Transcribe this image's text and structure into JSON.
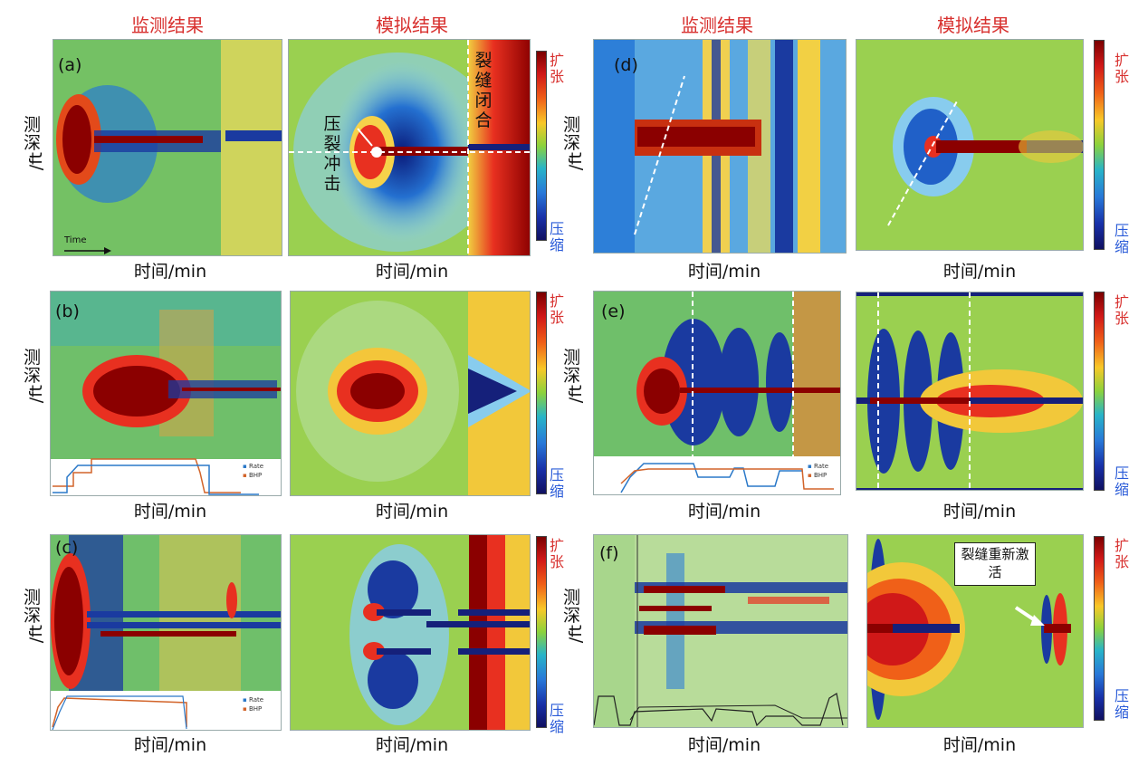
{
  "column_titles": {
    "left_monitor": "监测结果",
    "left_sim": "模拟结果",
    "right_monitor": "监测结果",
    "right_sim": "模拟结果"
  },
  "axis": {
    "x_label": "时间/min",
    "y_label_cn": "测深",
    "y_label_unit": "/ft"
  },
  "colorbar": {
    "top": "扩张",
    "bottom": "压缩"
  },
  "panel_tags": {
    "a": "(a)",
    "b": "(b)",
    "c": "(c)",
    "d": "(d)",
    "e": "(e)",
    "f": "(f)"
  },
  "annotations": {
    "time_arrow": "Time",
    "frac_hit": "压裂冲击",
    "frac_close": "裂缝闭合",
    "reactivation": "裂缝重新激活"
  },
  "legend": {
    "rate": "Rate",
    "bhp": "BHP"
  },
  "colors": {
    "title_red": "#d8312f",
    "compress_blue": "#2a5bd8",
    "bg_green": "#8cc84a",
    "deep_red": "#8b0000",
    "deep_blue": "#15207a"
  }
}
